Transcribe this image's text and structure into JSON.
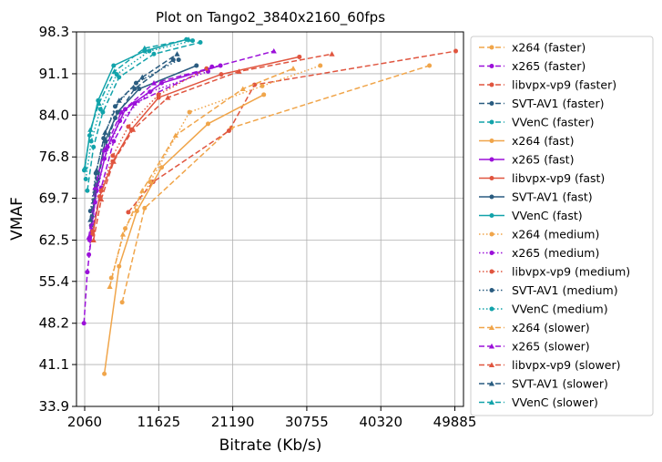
{
  "chart_data": {
    "type": "line",
    "title": "Plot on Tango2_3840x2160_60fps",
    "xlabel": "Bitrate (Kb/s)",
    "ylabel": "VMAF",
    "xlim": [
      1000,
      51000
    ],
    "ylim": [
      33.9,
      98.3
    ],
    "xticks": [
      2060,
      11625,
      21190,
      30755,
      40320,
      49885
    ],
    "xtick_labels": [
      "2060",
      "11625",
      "21190",
      "30755",
      "40320",
      "49885"
    ],
    "yticks": [
      33.9,
      41.1,
      48.2,
      55.4,
      62.5,
      69.7,
      76.8,
      84.0,
      91.1,
      98.3
    ],
    "ytick_labels": [
      "33.9",
      "41.1",
      "48.2",
      "55.4",
      "62.5",
      "69.7",
      "76.8",
      "84.0",
      "91.1",
      "98.3"
    ],
    "grid": true,
    "legend_position": "outside-right",
    "colors": {
      "x264": "#f0a54a",
      "x265": "#9b10d9",
      "libvpx-vp9": "#e0553f",
      "SVT-AV1": "#2a5c80",
      "VVenC": "#12a3aa"
    },
    "series": [
      {
        "name": "x264 (faster)",
        "codec": "x264",
        "dash": "dashed",
        "marker": "circle",
        "x": [
          6900,
          9800,
          21000,
          46600
        ],
        "y": [
          51.8,
          68.0,
          81.8,
          92.5
        ]
      },
      {
        "name": "x265 (faster)",
        "codec": "x265",
        "dash": "dashed",
        "marker": "circle",
        "x": [
          1960,
          2400,
          3000,
          4200,
          5800,
          8500,
          18500
        ],
        "y": [
          48.2,
          57.0,
          64.0,
          71.5,
          79.5,
          86.0,
          92.3
        ]
      },
      {
        "name": "libvpx-vp9 (faster)",
        "codec": "libvpx-vp9",
        "dash": "dashed",
        "marker": "circle",
        "x": [
          7700,
          10900,
          20700,
          24000,
          50000
        ],
        "y": [
          67.3,
          72.5,
          81.3,
          89.2,
          95.0
        ]
      },
      {
        "name": "SVT-AV1 (faster)",
        "codec": "SVT-AV1",
        "dash": "dashed",
        "marker": "circle",
        "x": [
          2900,
          3600,
          4600,
          6000,
          8500,
          13500
        ],
        "y": [
          65.0,
          72.0,
          78.0,
          83.5,
          88.5,
          93.5
        ]
      },
      {
        "name": "VVenC (faster)",
        "codec": "VVenC",
        "dash": "dashed",
        "marker": "circle",
        "x": [
          2400,
          3200,
          4400,
          6500,
          11000,
          17000
        ],
        "y": [
          71.0,
          78.5,
          84.5,
          90.5,
          94.5,
          96.5
        ]
      },
      {
        "name": "x264 (fast)",
        "codec": "x264",
        "dash": "solid",
        "marker": "circle",
        "x": [
          4600,
          6500,
          8800,
          12000,
          18000,
          25200
        ],
        "y": [
          39.5,
          58.0,
          67.5,
          75.0,
          82.5,
          87.5
        ]
      },
      {
        "name": "x265 (fast)",
        "codec": "x265",
        "dash": "solid",
        "marker": "circle",
        "x": [
          2700,
          3600,
          5000,
          7300,
          12000,
          19600
        ],
        "y": [
          62.5,
          71.0,
          78.5,
          85.0,
          89.5,
          92.5
        ]
      },
      {
        "name": "libvpx-vp9 (fast)",
        "codec": "libvpx-vp9",
        "dash": "solid",
        "marker": "circle",
        "x": [
          3100,
          4000,
          5700,
          8100,
          11600,
          19700,
          29800
        ],
        "y": [
          63.5,
          70.0,
          76.0,
          81.5,
          87.0,
          91.0,
          94.0
        ]
      },
      {
        "name": "SVT-AV1 (fast)",
        "codec": "SVT-AV1",
        "dash": "solid",
        "marker": "circle",
        "x": [
          3000,
          3700,
          4700,
          6300,
          9100,
          16500
        ],
        "y": [
          66.5,
          73.0,
          79.5,
          84.5,
          88.5,
          92.5
        ]
      },
      {
        "name": "VVenC (fast)",
        "codec": "VVenC",
        "dash": "solid",
        "marker": "circle",
        "x": [
          2000,
          2700,
          3800,
          5800,
          9800,
          15200
        ],
        "y": [
          74.5,
          80.5,
          86.5,
          92.5,
          95.0,
          97.0
        ]
      },
      {
        "name": "x264 (medium)",
        "codec": "x264",
        "dash": "dotted",
        "marker": "circle",
        "x": [
          5500,
          7300,
          10500,
          15600,
          25000,
          32500
        ],
        "y": [
          56.0,
          64.5,
          72.5,
          84.5,
          89.0,
          92.5
        ]
      },
      {
        "name": "x265 (medium)",
        "codec": "x265",
        "dash": "dotted",
        "marker": "circle",
        "x": [
          2600,
          3400,
          4600,
          6600,
          10500,
          18000
        ],
        "y": [
          60.0,
          69.0,
          76.5,
          83.0,
          88.0,
          91.5
        ]
      },
      {
        "name": "libvpx-vp9 (medium)",
        "codec": "libvpx-vp9",
        "dash": "dotted",
        "marker": "circle",
        "x": [
          3100,
          4200,
          5700,
          7700,
          11600,
          17800
        ],
        "y": [
          64.0,
          71.0,
          77.0,
          82.0,
          87.5,
          92.0
        ]
      },
      {
        "name": "SVT-AV1 (medium)",
        "codec": "SVT-AV1",
        "dash": "dotted",
        "marker": "circle",
        "x": [
          2800,
          3500,
          4500,
          6000,
          8700,
          14200
        ],
        "y": [
          67.5,
          74.0,
          80.0,
          85.5,
          89.5,
          93.5
        ]
      },
      {
        "name": "VVenC (medium)",
        "codec": "VVenC",
        "dash": "dotted",
        "marker": "circle",
        "x": [
          2200,
          2900,
          4100,
          6200,
          10400,
          16000
        ],
        "y": [
          73.0,
          79.5,
          85.0,
          91.0,
          95.0,
          96.8
        ]
      },
      {
        "name": "x264 (slower)",
        "codec": "x264",
        "dash": "dashed",
        "marker": "triangle",
        "x": [
          5300,
          7000,
          9500,
          13800,
          22500,
          29000
        ],
        "y": [
          54.5,
          63.5,
          71.0,
          80.5,
          88.5,
          92.0
        ]
      },
      {
        "name": "x265 (slower)",
        "codec": "x265",
        "dash": "dashed",
        "marker": "triangle",
        "x": [
          2600,
          3400,
          4600,
          6800,
          11000,
          26500
        ],
        "y": [
          63.0,
          71.5,
          78.0,
          84.5,
          89.5,
          95.0
        ]
      },
      {
        "name": "libvpx-vp9 (slower)",
        "codec": "libvpx-vp9",
        "dash": "dashed",
        "marker": "triangle",
        "x": [
          3200,
          4200,
          5800,
          8300,
          12800,
          22000,
          34000
        ],
        "y": [
          62.5,
          69.5,
          76.0,
          81.5,
          87.0,
          91.5,
          94.5
        ]
      },
      {
        "name": "SVT-AV1 (slower)",
        "codec": "SVT-AV1",
        "dash": "dashed",
        "marker": "triangle",
        "x": [
          2800,
          3600,
          4700,
          6500,
          9500,
          14000
        ],
        "y": [
          66.0,
          74.5,
          81.0,
          86.5,
          90.5,
          94.5
        ]
      },
      {
        "name": "VVenC (slower)",
        "codec": "VVenC",
        "dash": "dashed",
        "marker": "triangle",
        "x": [
          2100,
          2800,
          3900,
          5900,
          9800,
          15500
        ],
        "y": [
          75.0,
          81.5,
          86.0,
          91.5,
          95.5,
          97.0
        ]
      }
    ]
  }
}
